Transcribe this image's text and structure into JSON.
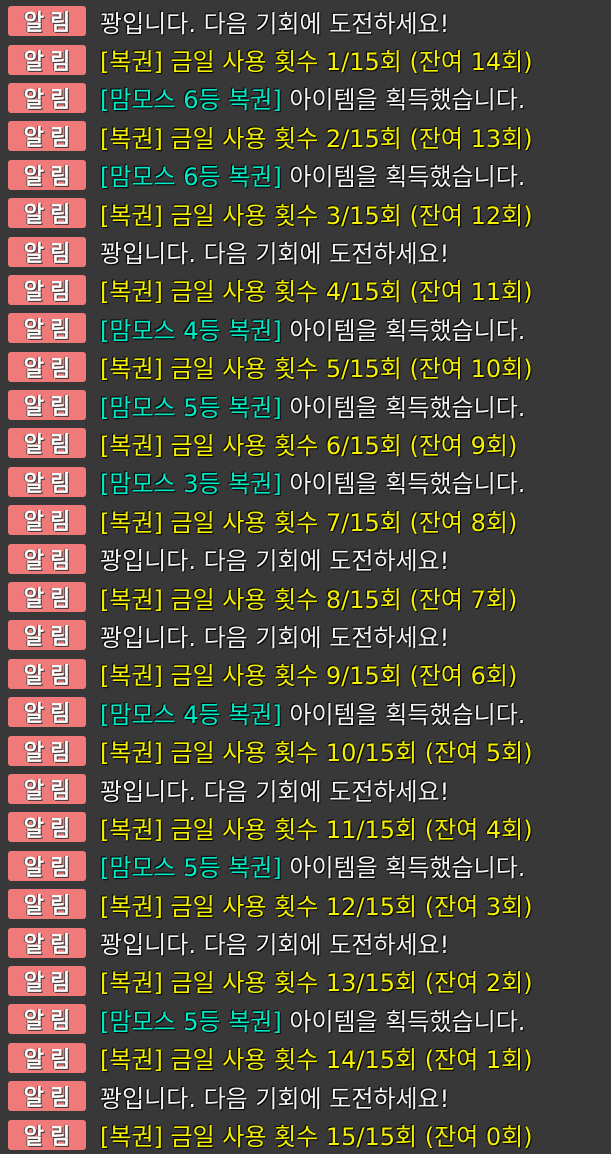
{
  "badge_label": "알림",
  "colors": {
    "background": "#383838",
    "badge": "#f07a7a",
    "system": "#f4f4f4",
    "usage": "#f4f000",
    "item": "#00ecc8"
  },
  "messages": [
    {
      "type": "fail",
      "text": "꽝입니다. 다음 기회에 도전하세요!"
    },
    {
      "type": "usage",
      "text": "[복권] 금일 사용 횟수 1/15회 (잔여 14회)"
    },
    {
      "type": "item",
      "item": "[맘모스 6등 복권]",
      "text": " 아이템을 획득했습니다."
    },
    {
      "type": "usage",
      "text": "[복권] 금일 사용 횟수 2/15회 (잔여 13회)"
    },
    {
      "type": "item",
      "item": "[맘모스 6등 복권]",
      "text": " 아이템을 획득했습니다."
    },
    {
      "type": "usage",
      "text": "[복권] 금일 사용 횟수 3/15회 (잔여 12회)"
    },
    {
      "type": "fail",
      "text": "꽝입니다. 다음 기회에 도전하세요!"
    },
    {
      "type": "usage",
      "text": "[복권] 금일 사용 횟수 4/15회 (잔여 11회)"
    },
    {
      "type": "item",
      "item": "[맘모스 4등 복권]",
      "text": " 아이템을 획득했습니다."
    },
    {
      "type": "usage",
      "text": "[복권] 금일 사용 횟수 5/15회 (잔여 10회)"
    },
    {
      "type": "item",
      "item": "[맘모스 5등 복권]",
      "text": " 아이템을 획득했습니다."
    },
    {
      "type": "usage",
      "text": "[복권] 금일 사용 횟수 6/15회 (잔여 9회)"
    },
    {
      "type": "item",
      "item": "[맘모스 3등 복권]",
      "text": " 아이템을 획득했습니다."
    },
    {
      "type": "usage",
      "text": "[복권] 금일 사용 횟수 7/15회 (잔여 8회)"
    },
    {
      "type": "fail",
      "text": "꽝입니다. 다음 기회에 도전하세요!"
    },
    {
      "type": "usage",
      "text": "[복권] 금일 사용 횟수 8/15회 (잔여 7회)"
    },
    {
      "type": "fail",
      "text": "꽝입니다. 다음 기회에 도전하세요!"
    },
    {
      "type": "usage",
      "text": "[복권] 금일 사용 횟수 9/15회 (잔여 6회)"
    },
    {
      "type": "item",
      "item": "[맘모스 4등 복권]",
      "text": " 아이템을 획득했습니다."
    },
    {
      "type": "usage",
      "text": "[복권] 금일 사용 횟수 10/15회 (잔여 5회)"
    },
    {
      "type": "fail",
      "text": "꽝입니다. 다음 기회에 도전하세요!"
    },
    {
      "type": "usage",
      "text": "[복권] 금일 사용 횟수 11/15회 (잔여 4회)"
    },
    {
      "type": "item",
      "item": "[맘모스 5등 복권]",
      "text": " 아이템을 획득했습니다."
    },
    {
      "type": "usage",
      "text": "[복권] 금일 사용 횟수 12/15회 (잔여 3회)"
    },
    {
      "type": "fail",
      "text": "꽝입니다. 다음 기회에 도전하세요!"
    },
    {
      "type": "usage",
      "text": "[복권] 금일 사용 횟수 13/15회 (잔여 2회)"
    },
    {
      "type": "item",
      "item": "[맘모스 5등 복권]",
      "text": " 아이템을 획득했습니다."
    },
    {
      "type": "usage",
      "text": "[복권] 금일 사용 횟수 14/15회 (잔여 1회)"
    },
    {
      "type": "fail",
      "text": "꽝입니다. 다음 기회에 도전하세요!"
    },
    {
      "type": "usage",
      "text": "[복권] 금일 사용 횟수 15/15회 (잔여 0회)"
    }
  ]
}
